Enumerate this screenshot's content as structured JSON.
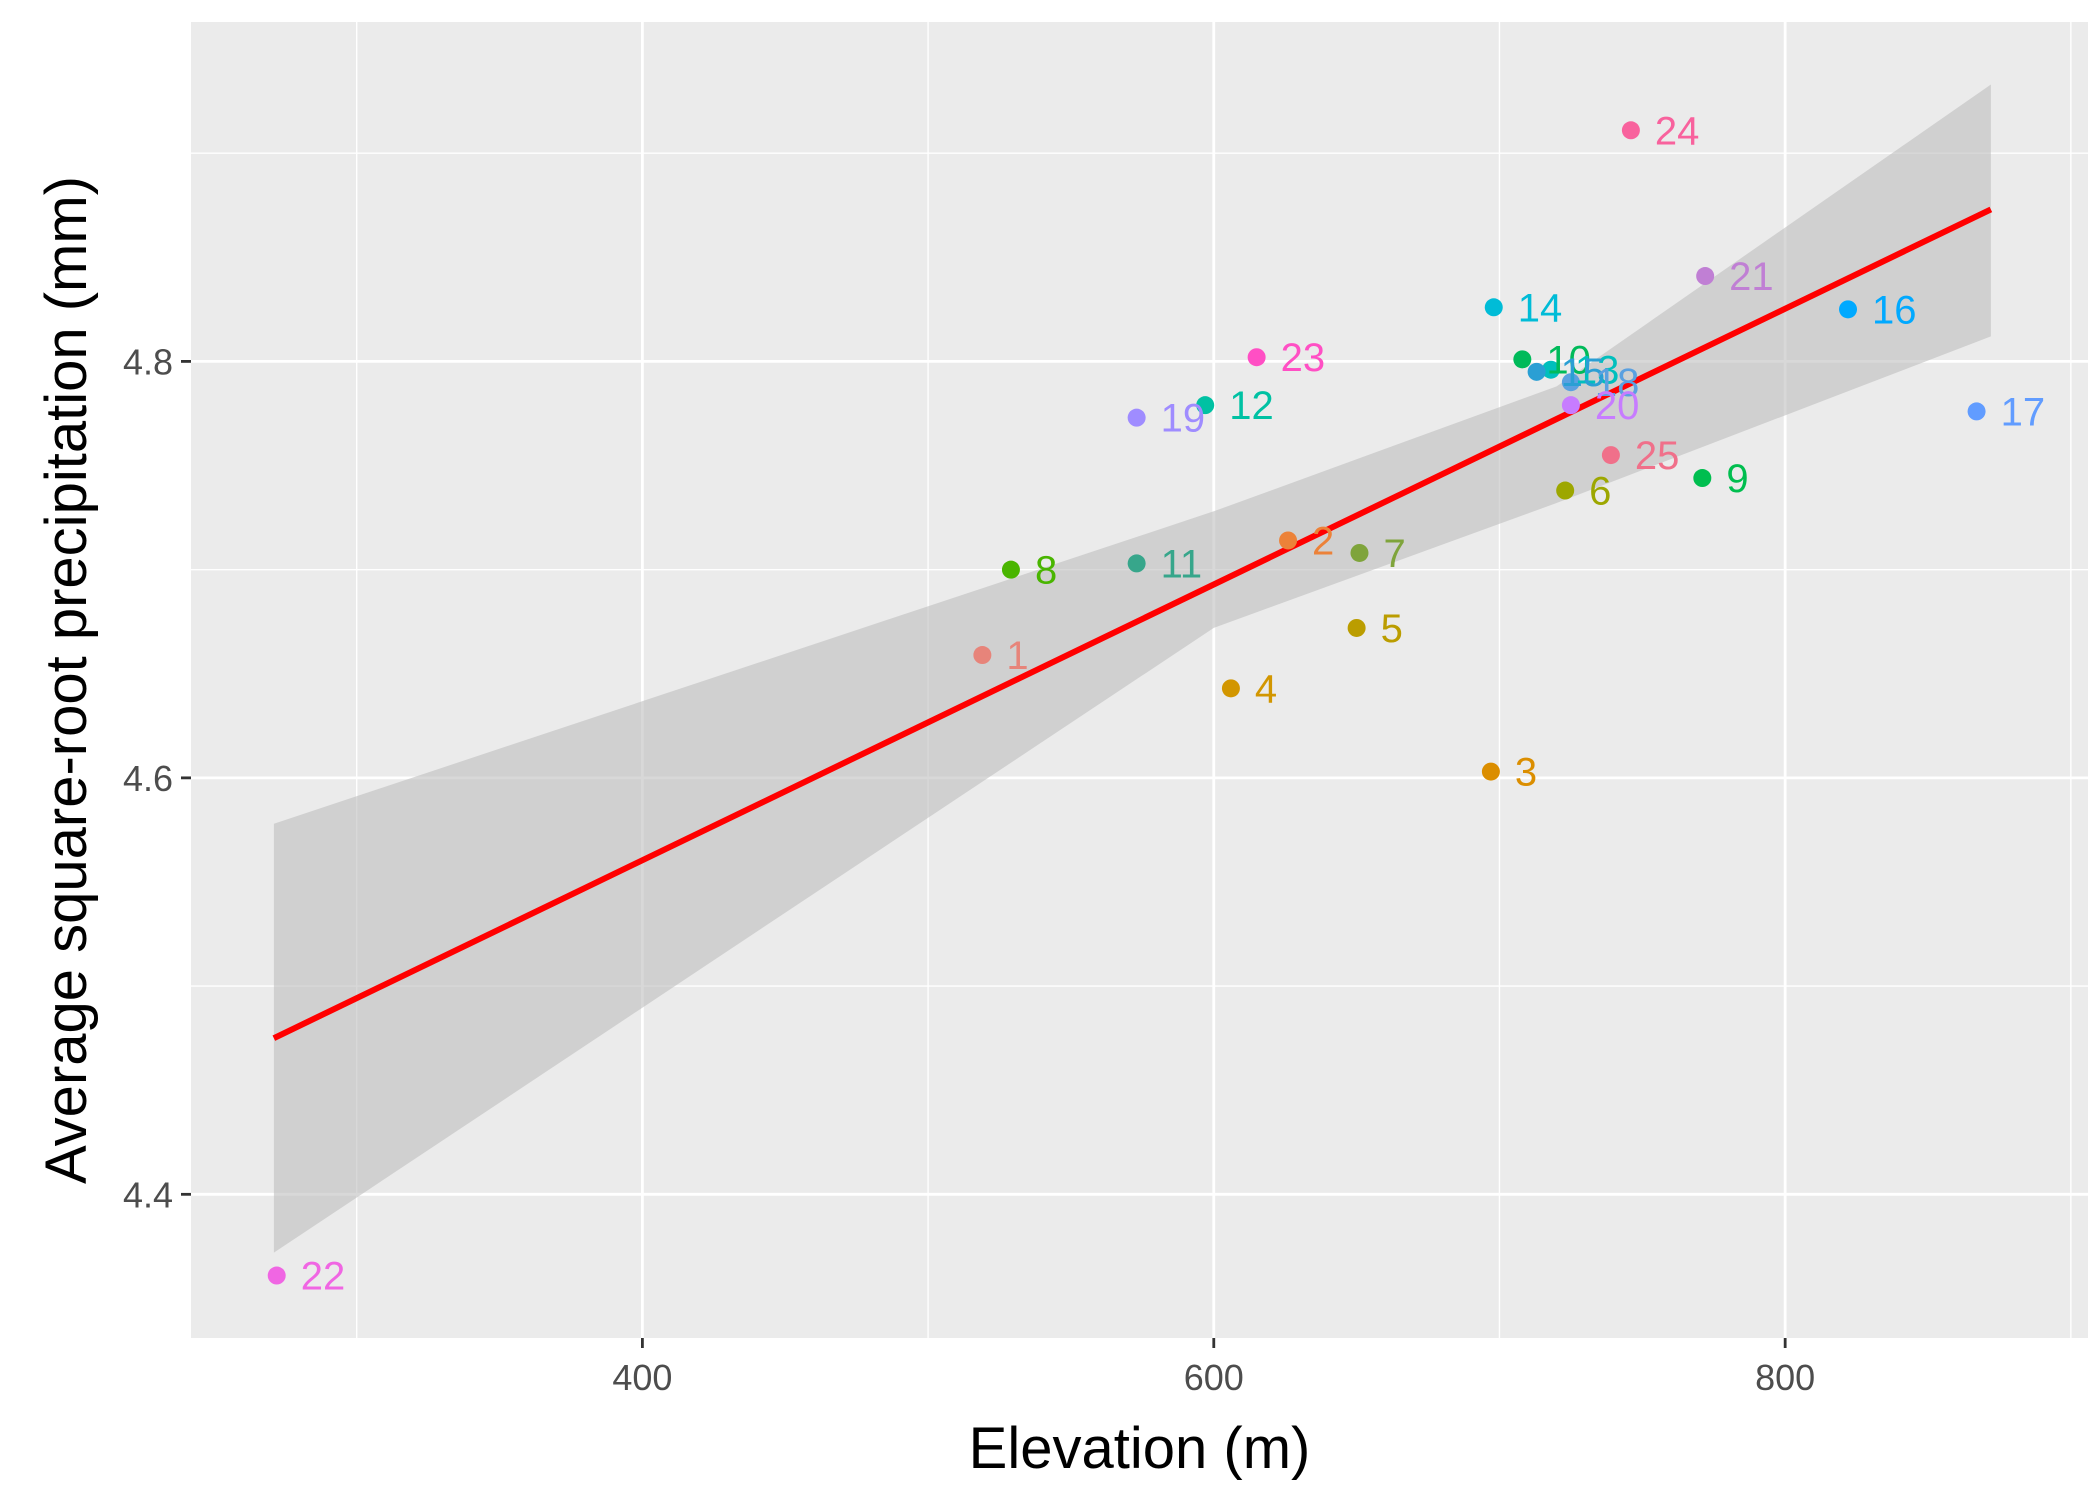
{
  "chart_data": {
    "type": "scatter",
    "title": "",
    "xlabel": "Elevation (m)",
    "ylabel": "Average square-root precipitation (mm)",
    "xlim": [
      242,
      906
    ],
    "ylim": [
      4.331,
      4.963
    ],
    "x_ticks": [
      400,
      600,
      800
    ],
    "x_tick_labels": [
      "400",
      "600",
      "800"
    ],
    "x_minor_ticks": [
      300,
      500,
      700,
      900
    ],
    "y_ticks": [
      4.4,
      4.6,
      4.8
    ],
    "y_tick_labels": [
      "4.4",
      "4.6",
      "4.8"
    ],
    "y_minor_ticks": [
      4.5,
      4.7,
      4.9
    ],
    "grid": true,
    "colors": {
      "panel_background": "#EBEBEB",
      "grid": "#FFFFFF",
      "fit_line": "#FF0000",
      "confidence_band": "#BEBEBE"
    },
    "fit": {
      "type": "linear",
      "x": [
        271,
        872
      ],
      "y": [
        4.475,
        4.873
      ],
      "ci_x": [
        271,
        600,
        720,
        872
      ],
      "ci_lower": [
        4.372,
        4.672,
        4.732,
        4.812
      ],
      "ci_upper": [
        4.578,
        4.728,
        4.788,
        4.933
      ]
    },
    "points": [
      {
        "label": "1",
        "x": 519,
        "y": 4.659,
        "color": "#E7847A"
      },
      {
        "label": "2",
        "x": 626,
        "y": 4.714,
        "color": "#EC8239"
      },
      {
        "label": "3",
        "x": 697,
        "y": 4.603,
        "color": "#DB8E00"
      },
      {
        "label": "4",
        "x": 606,
        "y": 4.643,
        "color": "#D29600"
      },
      {
        "label": "5",
        "x": 650,
        "y": 4.672,
        "color": "#BB9D00"
      },
      {
        "label": "6",
        "x": 723,
        "y": 4.738,
        "color": "#9DA700"
      },
      {
        "label": "7",
        "x": 651,
        "y": 4.708,
        "color": "#7FA43B"
      },
      {
        "label": "8",
        "x": 529,
        "y": 4.7,
        "color": "#49B500"
      },
      {
        "label": "9",
        "x": 771,
        "y": 4.744,
        "color": "#00BE4F"
      },
      {
        "label": "10",
        "x": 708,
        "y": 4.801,
        "color": "#00BA5A"
      },
      {
        "label": "11",
        "x": 573,
        "y": 4.703,
        "color": "#37A68B"
      },
      {
        "label": "12",
        "x": 597,
        "y": 4.779,
        "color": "#00C1A3"
      },
      {
        "label": "13",
        "x": 718,
        "y": 4.796,
        "color": "#00BFBD"
      },
      {
        "label": "14",
        "x": 698,
        "y": 4.826,
        "color": "#00BCD7"
      },
      {
        "label": "15",
        "x": 713,
        "y": 4.795,
        "color": "#2A9FD4"
      },
      {
        "label": "16",
        "x": 822,
        "y": 4.825,
        "color": "#00A9FF"
      },
      {
        "label": "17",
        "x": 867,
        "y": 4.776,
        "color": "#619CFF"
      },
      {
        "label": "18",
        "x": 725,
        "y": 4.79,
        "color": "#5AA0E0"
      },
      {
        "label": "19",
        "x": 573,
        "y": 4.773,
        "color": "#9F8CFF"
      },
      {
        "label": "20",
        "x": 725,
        "y": 4.779,
        "color": "#C77CFF"
      },
      {
        "label": "21",
        "x": 772,
        "y": 4.841,
        "color": "#C07FD4"
      },
      {
        "label": "22",
        "x": 272,
        "y": 4.361,
        "color": "#F066E3"
      },
      {
        "label": "23",
        "x": 615,
        "y": 4.802,
        "color": "#FF4FC4"
      },
      {
        "label": "24",
        "x": 746,
        "y": 4.911,
        "color": "#F8629D"
      },
      {
        "label": "25",
        "x": 739,
        "y": 4.755,
        "color": "#F0708A"
      }
    ]
  }
}
